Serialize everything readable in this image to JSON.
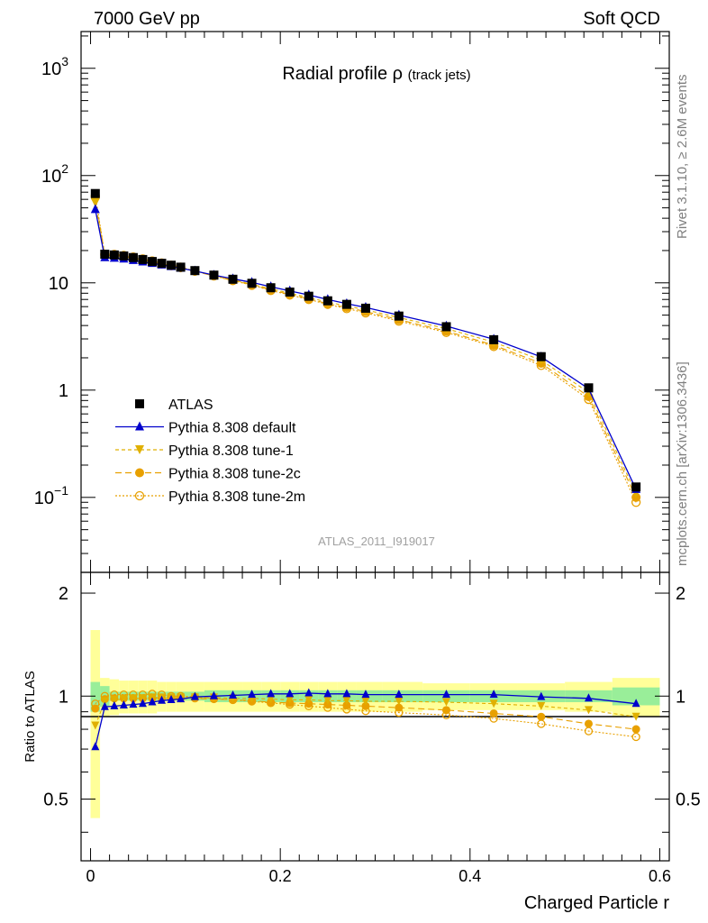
{
  "header": {
    "left": "7000 GeV pp",
    "right": "Soft QCD"
  },
  "side": {
    "rivet": "Rivet 3.1.10, ≥ 2.6M events",
    "mcplots": "mcplots.cern.ch [arXiv:1306.3436]"
  },
  "chart_data": {
    "type": "line",
    "title": "Radial profile",
    "title_symbol": "ρ",
    "title_suffix": "(track jets)",
    "analysis": "ATLAS_2011_I919017",
    "xlabel": "Charged Particle r",
    "ylabel_ratio": "Ratio to ATLAS",
    "xlim": [
      -0.01,
      0.61
    ],
    "ylim": [
      0.02,
      2200
    ],
    "yscale": "log",
    "ratio_ylim": [
      0.33,
      2.3
    ],
    "ratio_yscale": "log",
    "x_ticks": [
      "0",
      "0.2",
      "0.4",
      "0.6"
    ],
    "x_tick_values": [
      0,
      0.2,
      0.4,
      0.6
    ],
    "y_ticks": [
      {
        "value": 0.1,
        "base": "10",
        "exp": "−1"
      },
      {
        "value": 1,
        "base": "1",
        "exp": ""
      },
      {
        "value": 10,
        "base": "10",
        "exp": ""
      },
      {
        "value": 100,
        "base": "10",
        "exp": "2"
      },
      {
        "value": 1000,
        "base": "10",
        "exp": "3"
      }
    ],
    "ratio_ticks": [
      {
        "value": 0.5,
        "label": "0.5"
      },
      {
        "value": 1,
        "label": "1"
      },
      {
        "value": 2,
        "label": "2"
      }
    ],
    "legend_position": "middle-left",
    "x": [
      0.005,
      0.015,
      0.025,
      0.035,
      0.045,
      0.055,
      0.065,
      0.075,
      0.085,
      0.095,
      0.11,
      0.13,
      0.15,
      0.17,
      0.19,
      0.21,
      0.23,
      0.25,
      0.27,
      0.29,
      0.325,
      0.375,
      0.425,
      0.475,
      0.525,
      0.575
    ],
    "series": [
      {
        "name": "ATLAS",
        "color": "#000000",
        "marker": "square",
        "values": [
          68,
          18.5,
          18.2,
          17.8,
          17.2,
          16.5,
          15.8,
          15.2,
          14.6,
          14.0,
          13.0,
          11.8,
          10.8,
          9.9,
          9.0,
          8.2,
          7.5,
          6.8,
          6.3,
          5.8,
          4.9,
          3.9,
          2.95,
          2.05,
          1.05,
          0.125
        ],
        "ratio_stat": [
          0.1,
          0.07,
          0.03,
          0.03,
          0.03,
          0.03,
          0.03,
          0.03,
          0.03,
          0.03,
          0.03,
          0.04,
          0.04,
          0.04,
          0.04,
          0.04,
          0.04,
          0.04,
          0.04,
          0.04,
          0.04,
          0.04,
          0.04,
          0.04,
          0.04,
          0.06
        ],
        "ratio_total": [
          0.56,
          0.13,
          0.12,
          0.11,
          0.11,
          0.11,
          0.11,
          0.1,
          0.1,
          0.1,
          0.1,
          0.1,
          0.1,
          0.1,
          0.1,
          0.1,
          0.1,
          0.1,
          0.1,
          0.1,
          0.1,
          0.09,
          0.09,
          0.09,
          0.1,
          0.13
        ]
      },
      {
        "name": "Pythia 8.308 default",
        "color": "#0000cc",
        "marker": "triangle-up",
        "dash": "",
        "values": [
          48.3,
          17.2,
          17.0,
          16.7,
          16.2,
          15.7,
          15.2,
          14.7,
          14.2,
          13.7,
          12.9,
          11.8,
          10.9,
          10.1,
          9.2,
          8.4,
          7.7,
          7.0,
          6.4,
          5.9,
          5.0,
          3.95,
          2.98,
          2.04,
          1.03,
          0.119
        ],
        "ratio": [
          0.71,
          0.93,
          0.935,
          0.94,
          0.945,
          0.95,
          0.96,
          0.97,
          0.975,
          0.98,
          0.995,
          1.0,
          1.005,
          1.01,
          1.015,
          1.015,
          1.02,
          1.015,
          1.015,
          1.01,
          1.01,
          1.01,
          1.01,
          0.995,
          0.985,
          0.95
        ]
      },
      {
        "name": "Pythia 8.308 tune-1",
        "color": "#e0b000",
        "marker": "triangle-down",
        "dash": "4,3",
        "values": [
          55.8,
          17.9,
          17.8,
          17.5,
          16.9,
          16.3,
          15.6,
          15.0,
          14.5,
          13.9,
          12.9,
          11.7,
          10.7,
          9.7,
          8.8,
          8.0,
          7.3,
          6.6,
          6.1,
          5.6,
          4.75,
          3.74,
          2.8,
          1.9,
          0.95,
          0.109
        ],
        "ratio": [
          0.82,
          0.965,
          0.975,
          0.98,
          0.985,
          0.985,
          0.99,
          0.99,
          0.99,
          0.99,
          0.99,
          0.99,
          0.985,
          0.985,
          0.98,
          0.975,
          0.975,
          0.97,
          0.97,
          0.965,
          0.965,
          0.96,
          0.95,
          0.935,
          0.91,
          0.87
        ]
      },
      {
        "name": "Pythia 8.308 tune-2c",
        "color": "#e8a000",
        "marker": "circle",
        "dash": "7,4",
        "values": [
          62.6,
          18.1,
          18.0,
          17.6,
          17.0,
          16.3,
          15.6,
          15.0,
          14.4,
          13.8,
          12.8,
          11.6,
          10.5,
          9.6,
          8.6,
          7.8,
          7.1,
          6.4,
          5.9,
          5.4,
          4.53,
          3.55,
          2.62,
          1.78,
          0.87,
          0.1
        ],
        "ratio": [
          0.92,
          0.98,
          0.985,
          0.985,
          0.985,
          0.985,
          0.985,
          0.985,
          0.985,
          0.985,
          0.985,
          0.98,
          0.975,
          0.97,
          0.96,
          0.955,
          0.95,
          0.945,
          0.94,
          0.935,
          0.925,
          0.91,
          0.89,
          0.87,
          0.83,
          0.8
        ]
      },
      {
        "name": "Pythia 8.308 tune-2m",
        "color": "#e8a000",
        "marker": "circle-open",
        "dash": "2,2",
        "values": [
          64.6,
          18.5,
          18.4,
          18.0,
          17.4,
          16.7,
          16.0,
          15.3,
          14.6,
          14.0,
          12.9,
          11.6,
          10.5,
          9.5,
          8.5,
          7.7,
          7.0,
          6.3,
          5.75,
          5.25,
          4.4,
          3.45,
          2.55,
          1.7,
          0.82,
          0.09
        ],
        "ratio": [
          0.95,
          1.0,
          1.01,
          1.01,
          1.01,
          1.01,
          1.015,
          1.01,
          1.0,
          1.0,
          0.995,
          0.985,
          0.975,
          0.965,
          0.955,
          0.945,
          0.935,
          0.925,
          0.915,
          0.905,
          0.895,
          0.88,
          0.86,
          0.83,
          0.79,
          0.76
        ]
      }
    ]
  }
}
